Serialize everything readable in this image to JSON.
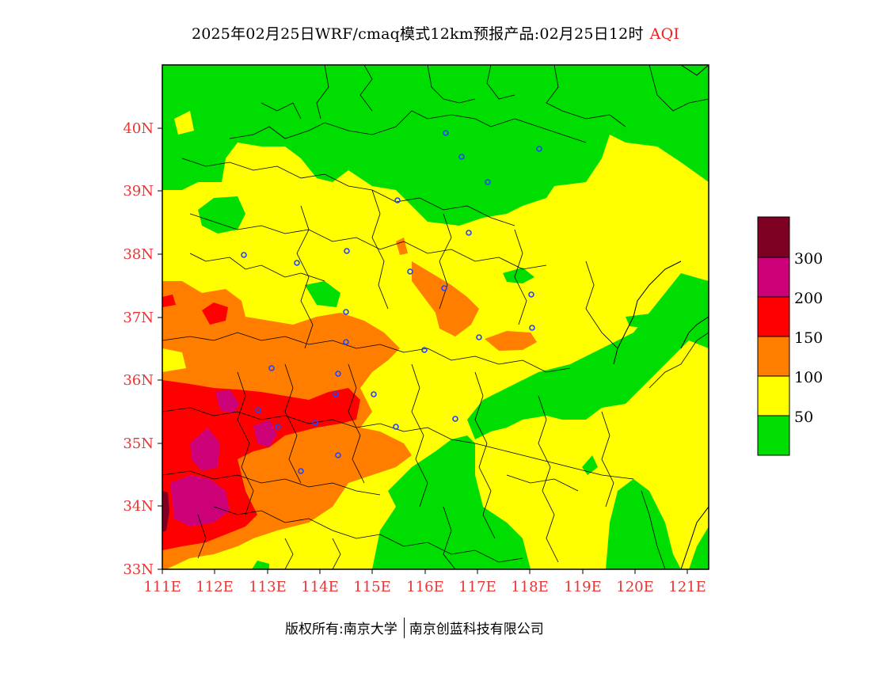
{
  "title": {
    "main": "2025年02月25日WRF/cmaq模式12km预报产品:02月25日12时",
    "variable": "AQI"
  },
  "colors": {
    "green": "#00dd00",
    "yellow": "#ffff00",
    "orange": "#ff7e00",
    "red": "#ff0000",
    "purple": "#cc0077",
    "maroon": "#7e0023",
    "station": "#2244ff",
    "tick": "#ee3333"
  },
  "map": {
    "lon_range": [
      111,
      121.4
    ],
    "lat_range": [
      33,
      41
    ],
    "lat_ticks": [
      "33N",
      "34N",
      "35N",
      "36N",
      "37N",
      "38N",
      "39N",
      "40N"
    ],
    "lon_ticks": [
      "111E",
      "112E",
      "113E",
      "114E",
      "115E",
      "116E",
      "117E",
      "118E",
      "119E",
      "120E",
      "121E"
    ]
  },
  "colorbar": {
    "labels": [
      "50",
      "100",
      "150",
      "200",
      "300"
    ]
  },
  "footer": {
    "left": "版权所有:南京大学",
    "right": "南京创蓝科技有限公司"
  }
}
